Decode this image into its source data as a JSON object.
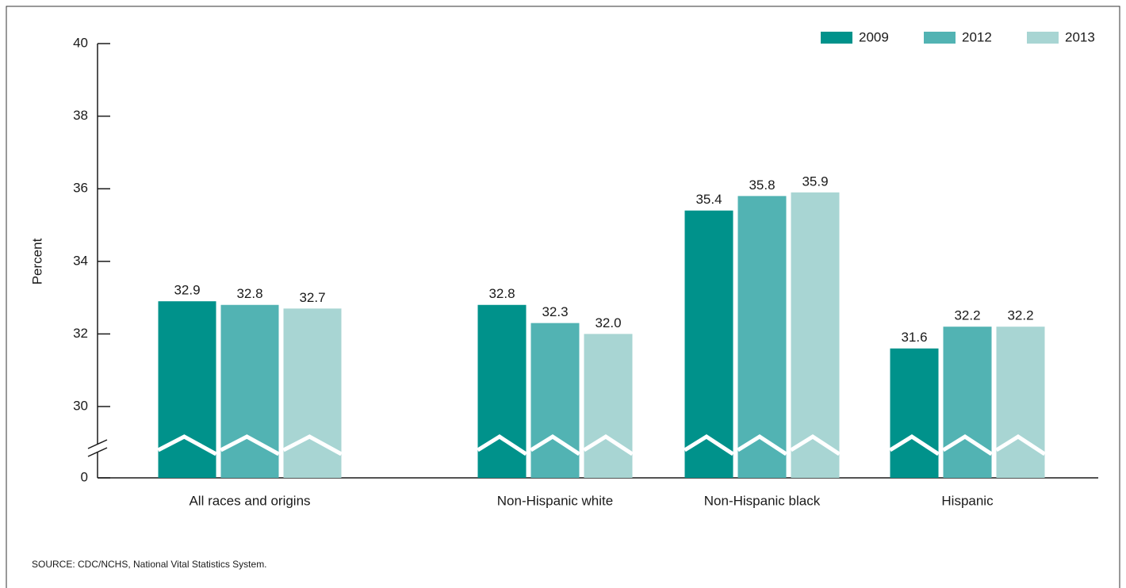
{
  "chart_data": {
    "type": "bar",
    "categories": [
      "All races and origins",
      "Non-Hispanic white",
      "Non-Hispanic black",
      "Hispanic"
    ],
    "series": [
      {
        "name": "2009",
        "color": "#00928b",
        "values": [
          32.9,
          32.8,
          35.4,
          31.6
        ],
        "value_labels": [
          "32.9",
          "32.8",
          "35.4",
          "31.6"
        ]
      },
      {
        "name": "2012",
        "color": "#52b3b3",
        "values": [
          32.8,
          32.3,
          35.8,
          32.2
        ],
        "value_labels": [
          "32.8",
          "32.3",
          "35.8",
          "32.2"
        ]
      },
      {
        "name": "2013",
        "color": "#a8d5d3",
        "values": [
          32.7,
          32.0,
          35.9,
          32.2
        ],
        "value_labels": [
          "32.7",
          "32.0",
          "35.9",
          "32.2"
        ]
      }
    ],
    "ylabel": "Percent",
    "ylim": [
      0,
      40
    ],
    "yticks": [
      0,
      30,
      32,
      34,
      36,
      38,
      40
    ],
    "axis_break": true,
    "legend": "top-right",
    "source": "SOURCE: CDC/NCHS, National Vital Statistics System."
  }
}
